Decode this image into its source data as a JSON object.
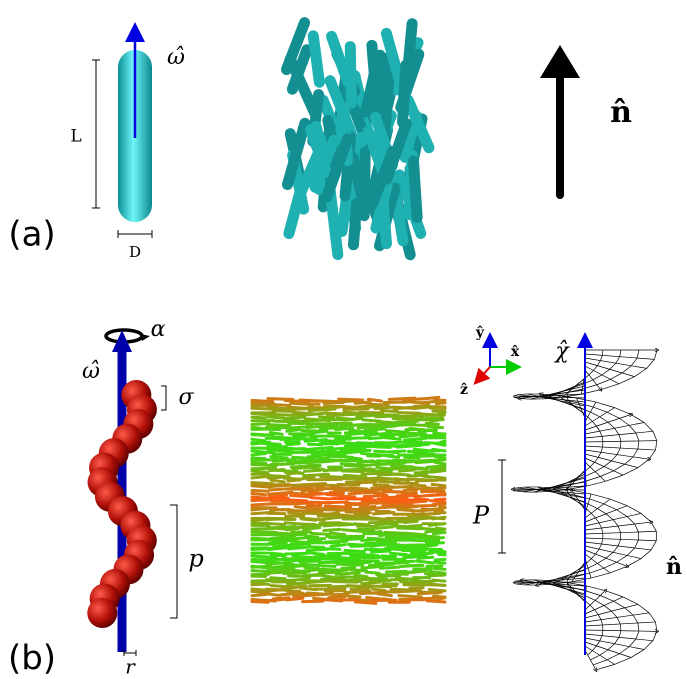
{
  "panels": [
    {
      "label": "(a)",
      "rod": {
        "axis": "ω̂",
        "length": "L",
        "diameter": "D"
      },
      "director": "n̂"
    },
    {
      "label": "(b)",
      "helix": {
        "axis": "ω̂",
        "twist": "α",
        "sphere": "σ",
        "pitch": "p",
        "radius": "r"
      },
      "axes": {
        "y": "ŷ",
        "x": "x̂",
        "z": "ẑ"
      },
      "cholesteric": {
        "axis": "χ̂",
        "pitch": "P",
        "director": "n̂"
      }
    }
  ]
}
